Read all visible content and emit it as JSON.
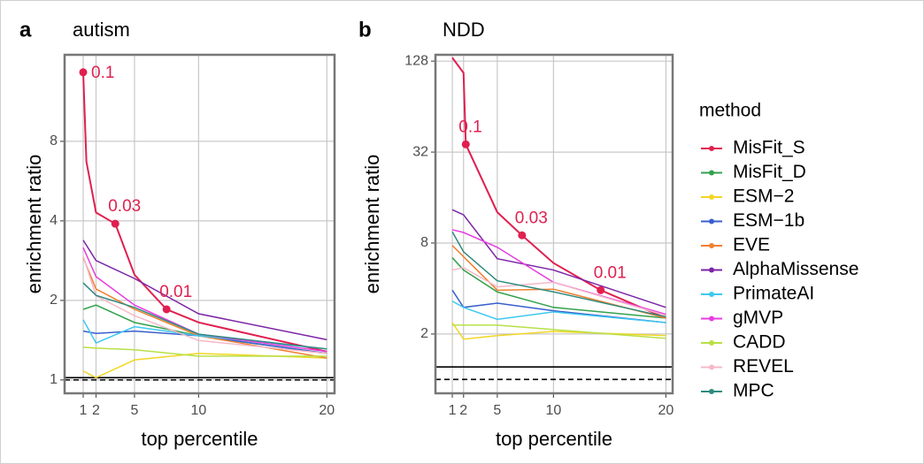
{
  "chart_data": [
    {
      "type": "line",
      "tag": "a",
      "title": "autism",
      "x_label": "top percentile",
      "y_label": "enrichment ratio",
      "log_y": true,
      "grid": true,
      "xlim": [
        -0.45,
        20.6
      ],
      "ylim": [
        0.89,
        17
      ],
      "xticks": [
        1,
        2,
        5,
        10,
        20
      ],
      "yticks": [
        1,
        2,
        4,
        8
      ],
      "x": [
        1,
        2,
        5,
        10,
        20
      ],
      "series": [
        {
          "name": "MisFit_S",
          "color": "#e0204f",
          "x": [
            1,
            1.25,
            2,
            3.5,
            5,
            7.5,
            10,
            20
          ],
          "values": [
            14.6,
            6.7,
            4.3,
            3.9,
            2.5,
            1.85,
            1.65,
            1.28
          ]
        },
        {
          "name": "MisFit_D",
          "color": "#33a14d",
          "values": [
            1.85,
            1.92,
            1.65,
            1.47,
            1.26
          ]
        },
        {
          "name": "ESM−2",
          "color": "#f2d624",
          "values": [
            1.08,
            1.02,
            1.19,
            1.26,
            1.21
          ]
        },
        {
          "name": "ESM−1b",
          "color": "#3a5fcd",
          "values": [
            1.53,
            1.5,
            1.53,
            1.47,
            1.26
          ]
        },
        {
          "name": "EVE",
          "color": "#f08030",
          "values": [
            2.9,
            2.21,
            1.85,
            1.47,
            1.21
          ]
        },
        {
          "name": "AlphaMissense",
          "color": "#7b24a6",
          "values": [
            3.38,
            2.83,
            2.42,
            1.78,
            1.42
          ]
        },
        {
          "name": "PrimateAI",
          "color": "#3ec8f0",
          "values": [
            1.69,
            1.38,
            1.59,
            1.47,
            1.31
          ]
        },
        {
          "name": "gMVP",
          "color": "#e83de0",
          "values": [
            3.17,
            2.46,
            1.92,
            1.49,
            1.28
          ]
        },
        {
          "name": "CADD",
          "color": "#b8e046",
          "values": [
            1.33,
            1.32,
            1.3,
            1.23,
            1.23
          ]
        },
        {
          "name": "REVEL",
          "color": "#f5b8c8",
          "values": [
            2.94,
            2.08,
            1.75,
            1.41,
            1.26
          ]
        },
        {
          "name": "MPC",
          "color": "#2e8b7f",
          "values": [
            2.33,
            2.09,
            1.88,
            1.49,
            1.31
          ]
        }
      ],
      "points": [
        {
          "x": 1,
          "y": 14.6,
          "label": "0.1"
        },
        {
          "x": 3.5,
          "y": 3.9,
          "label": "0.03"
        },
        {
          "x": 7.5,
          "y": 1.85,
          "label": "0.01"
        }
      ],
      "point_color": "#e0204f",
      "hlines": [
        {
          "value": 1.02,
          "style": "solid"
        },
        {
          "value": 1,
          "style": "dashed"
        }
      ]
    },
    {
      "type": "line",
      "tag": "b",
      "title": "NDD",
      "x_label": "top percentile",
      "y_label": "enrichment ratio",
      "log_y": true,
      "grid": true,
      "xlim": [
        -0.5,
        20.6
      ],
      "ylim": [
        0.81,
        141
      ],
      "xticks": [
        1,
        2,
        5,
        10,
        20
      ],
      "yticks": [
        2,
        8,
        32,
        128
      ],
      "x": [
        1,
        2,
        5,
        10,
        20
      ],
      "series": [
        {
          "name": "MisFit_S",
          "color": "#e0204f",
          "x": [
            1,
            2,
            2.2,
            5,
            7.2,
            10,
            14.2,
            20
          ],
          "values": [
            135,
            107,
            36,
            12.8,
            9,
            5.9,
            3.9,
            2.55
          ]
        },
        {
          "name": "MisFit_D",
          "color": "#33a14d",
          "values": [
            6.4,
            5.3,
            3.8,
            3,
            2.55
          ]
        },
        {
          "name": "ESM−2",
          "color": "#f2d624",
          "values": [
            2.38,
            1.85,
            1.95,
            2.08,
            1.95
          ]
        },
        {
          "name": "ESM−1b",
          "color": "#3a5fcd",
          "values": [
            3.9,
            3,
            3.2,
            2.85,
            2.38
          ]
        },
        {
          "name": "EVE",
          "color": "#f08030",
          "values": [
            7.7,
            6.5,
            3.9,
            3.96,
            2.55
          ]
        },
        {
          "name": "AlphaMissense",
          "color": "#7b24a6",
          "values": [
            13.3,
            12.3,
            6.3,
            5.3,
            3
          ]
        },
        {
          "name": "PrimateAI",
          "color": "#3ec8f0",
          "values": [
            3.3,
            3,
            2.5,
            2.8,
            2.38
          ]
        },
        {
          "name": "gMVP",
          "color": "#e83de0",
          "values": [
            9.8,
            9.4,
            7.5,
            4.4,
            2.7
          ]
        },
        {
          "name": "CADD",
          "color": "#b8e046",
          "values": [
            2.29,
            2.29,
            2.29,
            2.14,
            1.87
          ]
        },
        {
          "name": "REVEL",
          "color": "#f5b8c8",
          "values": [
            5.3,
            5.5,
            4.1,
            4.4,
            2.65
          ]
        },
        {
          "name": "MPC",
          "color": "#2e8b7f",
          "values": [
            9.5,
            7,
            4.5,
            3.8,
            2.6
          ]
        }
      ],
      "points": [
        {
          "x": 2.2,
          "y": 36,
          "label": "0.1"
        },
        {
          "x": 7.2,
          "y": 9,
          "label": "0.03"
        },
        {
          "x": 14.2,
          "y": 3.9,
          "label": "0.01"
        }
      ],
      "point_color": "#e0204f",
      "hlines": [
        {
          "value": 1.21,
          "style": "solid"
        },
        {
          "value": 1,
          "style": "dashed"
        }
      ],
      "legend": {
        "title": "method",
        "position": "right"
      }
    }
  ]
}
